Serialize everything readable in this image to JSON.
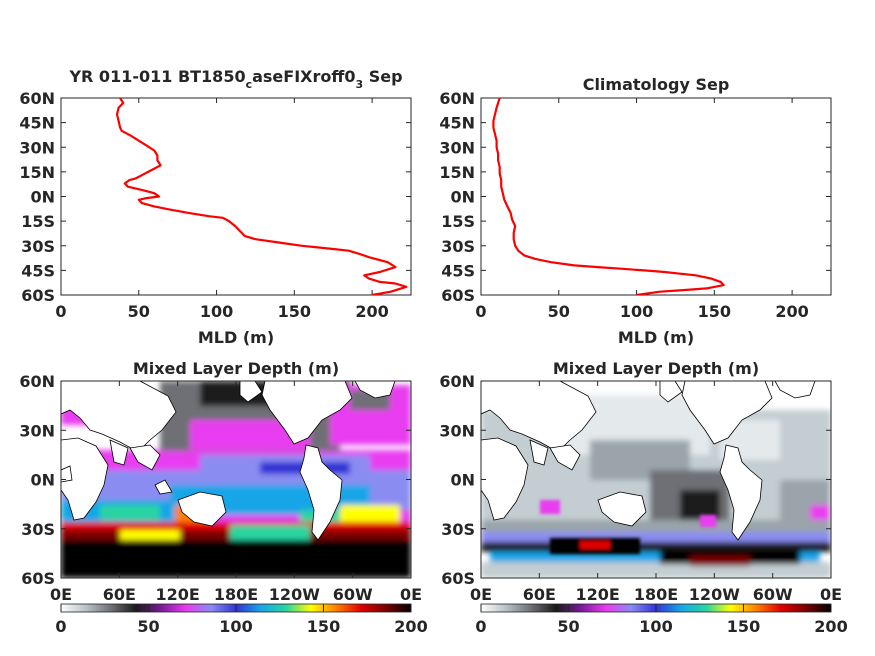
{
  "colorscale": {
    "stops": [
      "#ffffff",
      "#b7c2c8",
      "#6e7075",
      "#1a1a1a",
      "#7a1a9a",
      "#e83cf0",
      "#8a8cf2",
      "#3333d6",
      "#18a6e8",
      "#2ad4a0",
      "#ffff00",
      "#ff8000",
      "#e00000",
      "#7a0000",
      "#000000"
    ]
  },
  "chart_data": [
    {
      "type": "line",
      "title_main": "YR 011-011 BT1850",
      "title_sub1": "c",
      "title_mid": "aseFIXroff0",
      "title_sub2": "3",
      "title_tail": " Sep",
      "xlabel": "MLD (m)",
      "xlim": [
        0,
        225
      ],
      "ylim": [
        -60,
        60
      ],
      "xticks": [
        "0",
        "50",
        "100",
        "150",
        "200"
      ],
      "xtick_values": [
        0,
        50,
        100,
        150,
        200
      ],
      "yticks": [
        "60N",
        "45N",
        "30N",
        "15N",
        "0N",
        "15S",
        "30S",
        "45S",
        "60S"
      ],
      "ytick_values": [
        60,
        45,
        30,
        15,
        0,
        -15,
        -30,
        -45,
        -60
      ],
      "line_color": "#ff0000",
      "series": [
        {
          "x": [
            38,
            40,
            37,
            36,
            37,
            38,
            39,
            45,
            50,
            55,
            60,
            62,
            62,
            64,
            60,
            56,
            52,
            48,
            44,
            41,
            43,
            52,
            60,
            63,
            55,
            50,
            52,
            60,
            70,
            82,
            95,
            104,
            108,
            112,
            115,
            118,
            125,
            140,
            155,
            165,
            175,
            185,
            192,
            198,
            210,
            215,
            205,
            195,
            198,
            205,
            215,
            222,
            212,
            200
          ],
          "y": [
            60,
            57,
            54,
            50,
            46,
            42,
            40,
            37,
            34,
            31,
            28,
            25,
            22,
            19,
            17,
            15,
            13,
            11,
            10,
            8,
            6,
            4,
            2,
            0,
            -1,
            -2,
            -4,
            -6,
            -8,
            -10,
            -12,
            -13,
            -15,
            -18,
            -21,
            -24,
            -26,
            -28,
            -30,
            -31,
            -32,
            -33,
            -35,
            -37,
            -40,
            -43,
            -46,
            -48,
            -50,
            -52,
            -53,
            -55,
            -58,
            -60
          ]
        }
      ]
    },
    {
      "type": "line",
      "title": "Climatology Sep",
      "xlabel": "MLD (m)",
      "xlim": [
        0,
        225
      ],
      "ylim": [
        -60,
        60
      ],
      "xticks": [
        "0",
        "50",
        "100",
        "150",
        "200"
      ],
      "xtick_values": [
        0,
        50,
        100,
        150,
        200
      ],
      "yticks": [
        "60N",
        "45N",
        "30N",
        "15N",
        "0N",
        "15S",
        "30S",
        "45S",
        "60S"
      ],
      "ytick_values": [
        60,
        45,
        30,
        15,
        0,
        -15,
        -30,
        -45,
        -60
      ],
      "line_color": "#ff0000",
      "series": [
        {
          "x": [
            12,
            11,
            10,
            9,
            8,
            8,
            9,
            10,
            10,
            11,
            11,
            12,
            12,
            13,
            13,
            14,
            15,
            17,
            19,
            20,
            22,
            21,
            21,
            22,
            24,
            28,
            35,
            45,
            60,
            75,
            90,
            105,
            118,
            128,
            138,
            148,
            154,
            156,
            145,
            130,
            115,
            100
          ],
          "y": [
            60,
            57,
            54,
            50,
            46,
            42,
            38,
            34,
            30,
            26,
            22,
            18,
            14,
            10,
            6,
            2,
            -2,
            -6,
            -10,
            -14,
            -18,
            -22,
            -26,
            -30,
            -33,
            -36,
            -38,
            -40,
            -42,
            -43,
            -44,
            -45,
            -46,
            -47,
            -48,
            -50,
            -52,
            -54,
            -56,
            -57,
            -58,
            -60
          ]
        }
      ]
    },
    {
      "type": "heatmap",
      "title": "Mixed Layer Depth (m)",
      "ylim": [
        -60,
        60
      ],
      "yticks": [
        "60N",
        "30N",
        "0N",
        "30S",
        "60S"
      ],
      "ytick_values": [
        60,
        30,
        0,
        -30,
        -60
      ],
      "xticks": [
        "0E",
        "60E",
        "120E",
        "180E",
        "120W",
        "60W",
        "0E"
      ],
      "xtick_values": [
        0,
        60,
        120,
        180,
        240,
        300,
        360
      ],
      "colorbar": {
        "ticks": [
          "0",
          "50",
          "100",
          "150",
          "200"
        ],
        "range": [
          0,
          200
        ]
      },
      "note_values": "MLD field: deep (>150 m) in Southern Ocean 35S-60S; 40-80 m tropics; shallow gray North Pacific; pink/violet North Atlantic"
    },
    {
      "type": "heatmap",
      "title": "Mixed Layer Depth (m)",
      "ylim": [
        -60,
        60
      ],
      "yticks": [
        "60N",
        "30N",
        "0N",
        "30S",
        "60S"
      ],
      "ytick_values": [
        60,
        30,
        0,
        -30,
        -60
      ],
      "xticks": [
        "0E",
        "60E",
        "120E",
        "180E",
        "120W",
        "60W",
        "0E"
      ],
      "xtick_values": [
        0,
        60,
        120,
        180,
        240,
        300,
        360
      ],
      "colorbar": {
        "ticks": [
          "0",
          "50",
          "100",
          "150",
          "200"
        ],
        "range": [
          0,
          200
        ]
      },
      "note_values": "Climatology: mostly 0-50 m globally; deep band (>150 m) along 45S-55S"
    }
  ]
}
